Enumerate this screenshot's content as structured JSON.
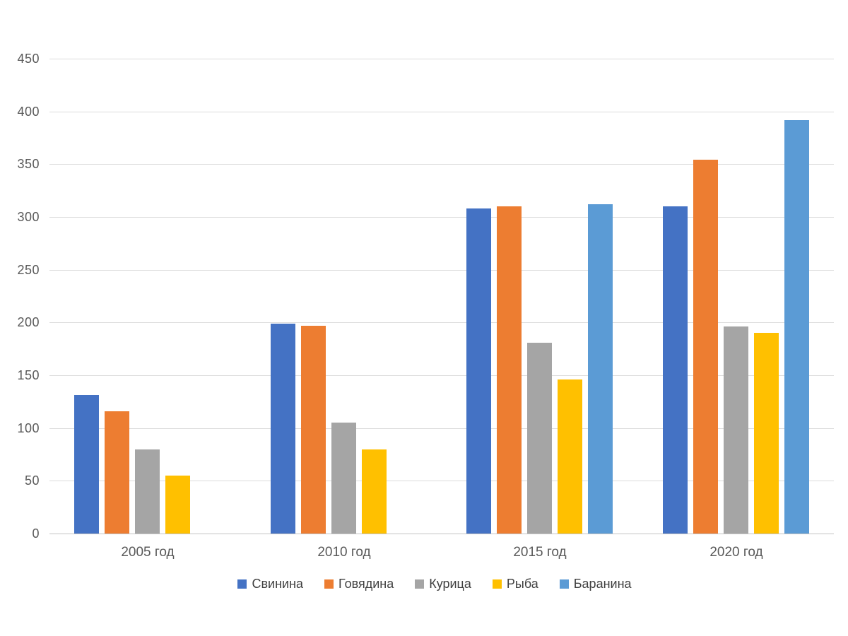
{
  "chart_data": {
    "type": "bar",
    "title": "",
    "categories": [
      "2005 год",
      "2010 год",
      "2015 год",
      "2020 год"
    ],
    "series": [
      {
        "key": "pork",
        "name": "Свинина",
        "color": "#4472C4",
        "values": [
          131,
          199,
          308,
          310
        ]
      },
      {
        "key": "beef",
        "name": "Говядина",
        "color": "#ED7D31",
        "values": [
          116,
          197,
          310,
          354
        ]
      },
      {
        "key": "chicken",
        "name": "Курица",
        "color": "#A5A5A5",
        "values": [
          80,
          105,
          181,
          196
        ]
      },
      {
        "key": "fish",
        "name": "Рыба",
        "color": "#FFC000",
        "values": [
          55,
          80,
          146,
          190
        ]
      },
      {
        "key": "lamb",
        "name": "Баранина",
        "color": "#5B9BD5",
        "values": [
          null,
          null,
          312,
          392
        ]
      }
    ],
    "xlabel": "",
    "ylabel": "",
    "y_axis": {
      "min": 0,
      "max": 450,
      "step": 50,
      "tick_labels": [
        "0",
        "50",
        "100",
        "150",
        "200",
        "250",
        "300",
        "350",
        "400",
        "450"
      ]
    },
    "grid": true,
    "legend_position": "bottom",
    "colors": {
      "tick_text": "#595959",
      "legend_text": "#404040",
      "gridline": "#dcdcdc",
      "axis_line": "#c4c4c4",
      "background": "#ffffff"
    }
  }
}
